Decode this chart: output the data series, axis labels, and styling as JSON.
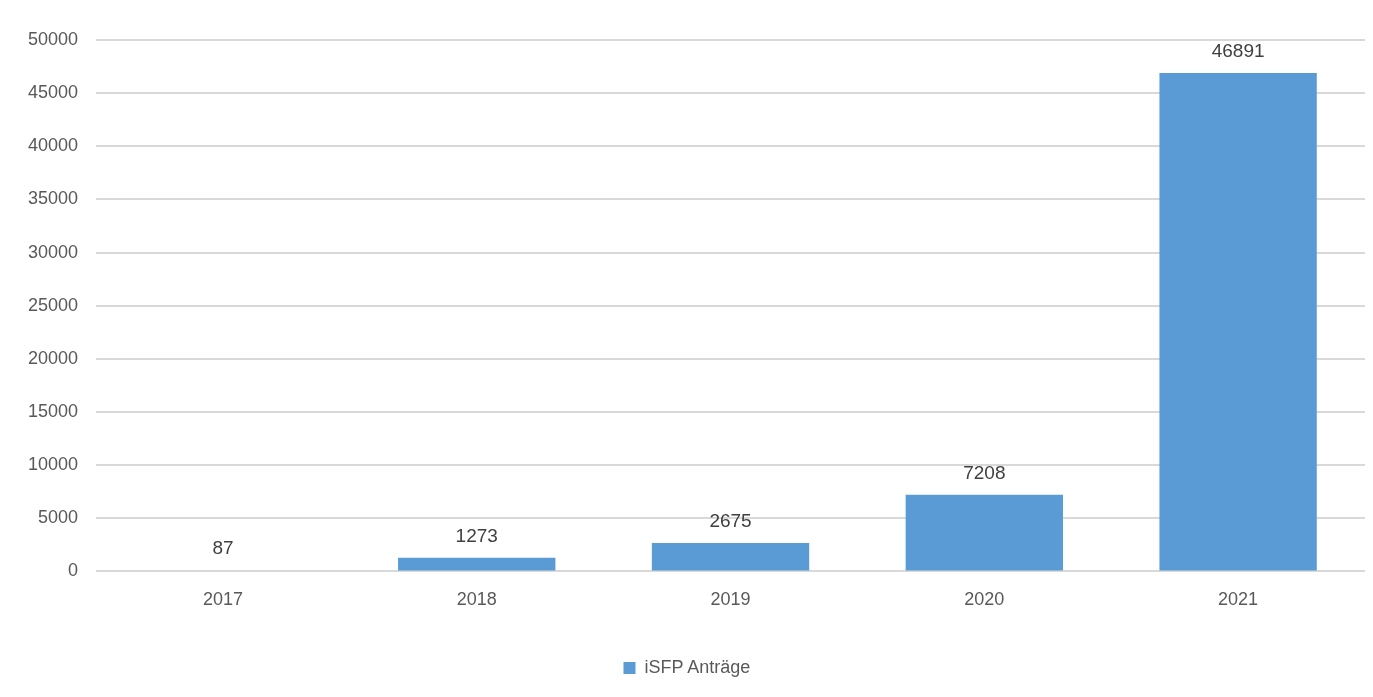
{
  "chart_data": {
    "type": "bar",
    "categories": [
      "2017",
      "2018",
      "2019",
      "2020",
      "2021"
    ],
    "series": [
      {
        "name": "iSFP Anträge",
        "color": "#5b9bd5",
        "values": [
          87,
          1273,
          2675,
          7208,
          46891
        ]
      }
    ],
    "ylim": [
      0,
      50000
    ],
    "yticks": [
      0,
      5000,
      10000,
      15000,
      20000,
      25000,
      30000,
      35000,
      40000,
      45000,
      50000
    ],
    "grid": "y",
    "legend": "bottom",
    "data_labels": true
  }
}
